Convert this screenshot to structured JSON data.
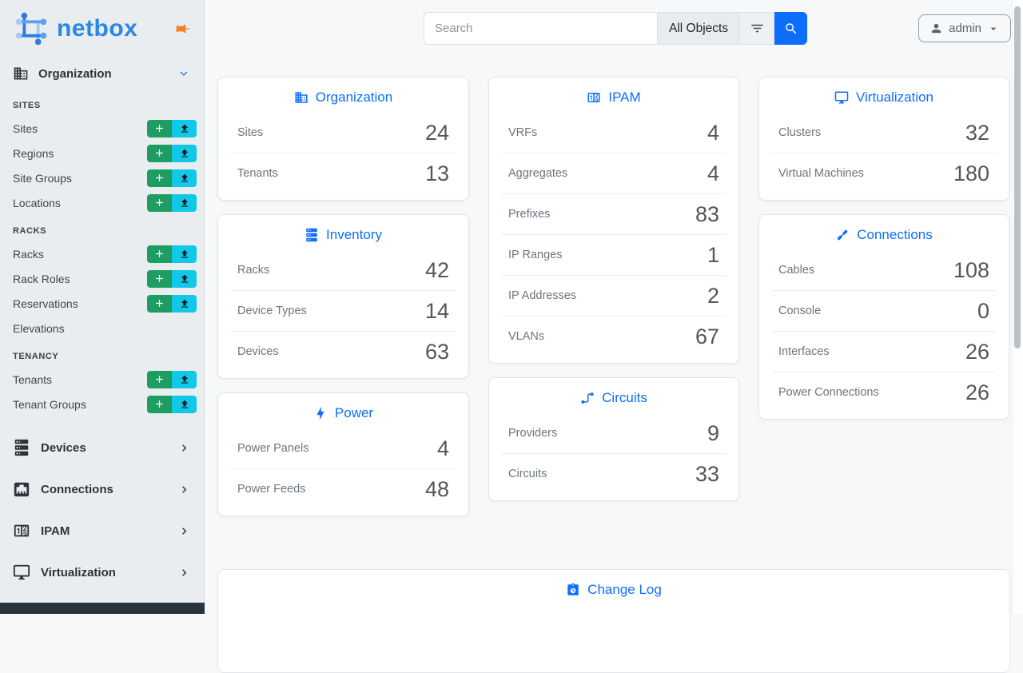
{
  "colors": {
    "accent_blue": "#0d6efd",
    "add_green": "#1e9d62",
    "import_cyan": "#12c8e8",
    "pin_orange": "#f58220",
    "logo_blue": "#2b87e4"
  },
  "sidebar": {
    "logo_text": "netbox",
    "organization_menu": {
      "label": "Organization",
      "icon": "building-icon",
      "state": "expanded"
    },
    "sections": [
      {
        "title": "SITES",
        "items": [
          {
            "label": "Sites",
            "has_buttons": true
          },
          {
            "label": "Regions",
            "has_buttons": true
          },
          {
            "label": "Site Groups",
            "has_buttons": true
          },
          {
            "label": "Locations",
            "has_buttons": true
          }
        ]
      },
      {
        "title": "RACKS",
        "items": [
          {
            "label": "Racks",
            "has_buttons": true
          },
          {
            "label": "Rack Roles",
            "has_buttons": true
          },
          {
            "label": "Reservations",
            "has_buttons": true
          },
          {
            "label": "Elevations",
            "has_buttons": false
          }
        ]
      },
      {
        "title": "TENANCY",
        "items": [
          {
            "label": "Tenants",
            "has_buttons": true
          },
          {
            "label": "Tenant Groups",
            "has_buttons": true
          }
        ]
      }
    ],
    "menus": [
      {
        "label": "Devices",
        "icon": "server-icon"
      },
      {
        "label": "Connections",
        "icon": "ethernet-icon"
      },
      {
        "label": "IPAM",
        "icon": "counter-icon"
      },
      {
        "label": "Virtualization",
        "icon": "monitor-icon"
      }
    ]
  },
  "topbar": {
    "search_placeholder": "Search",
    "scope_button": "All Objects",
    "user_menu": {
      "label": "admin",
      "icon": "user-icon"
    }
  },
  "columns": [
    [
      {
        "title": "Organization",
        "icon": "building-icon",
        "rows": [
          {
            "label": "Sites",
            "value": "24"
          },
          {
            "label": "Tenants",
            "value": "13"
          }
        ]
      },
      {
        "title": "Inventory",
        "icon": "server-icon",
        "rows": [
          {
            "label": "Racks",
            "value": "42"
          },
          {
            "label": "Device Types",
            "value": "14"
          },
          {
            "label": "Devices",
            "value": "63"
          }
        ]
      },
      {
        "title": "Power",
        "icon": "bolt-icon",
        "rows": [
          {
            "label": "Power Panels",
            "value": "4"
          },
          {
            "label": "Power Feeds",
            "value": "48"
          }
        ]
      }
    ],
    [
      {
        "title": "IPAM",
        "icon": "counter-icon",
        "rows": [
          {
            "label": "VRFs",
            "value": "4"
          },
          {
            "label": "Aggregates",
            "value": "4"
          },
          {
            "label": "Prefixes",
            "value": "83"
          },
          {
            "label": "IP Ranges",
            "value": "1"
          },
          {
            "label": "IP Addresses",
            "value": "2"
          },
          {
            "label": "VLANs",
            "value": "67"
          }
        ]
      },
      {
        "title": "Circuits",
        "icon": "circuits-icon",
        "rows": [
          {
            "label": "Providers",
            "value": "9"
          },
          {
            "label": "Circuits",
            "value": "33"
          }
        ]
      }
    ],
    [
      {
        "title": "Virtualization",
        "icon": "monitor-icon",
        "rows": [
          {
            "label": "Clusters",
            "value": "32"
          },
          {
            "label": "Virtual Machines",
            "value": "180"
          }
        ]
      },
      {
        "title": "Connections",
        "icon": "cable-icon",
        "rows": [
          {
            "label": "Cables",
            "value": "108"
          },
          {
            "label": "Console",
            "value": "0"
          },
          {
            "label": "Interfaces",
            "value": "26"
          },
          {
            "label": "Power Connections",
            "value": "26"
          }
        ]
      }
    ]
  ],
  "changelog": {
    "title": "Change Log",
    "icon": "changelog-icon"
  }
}
